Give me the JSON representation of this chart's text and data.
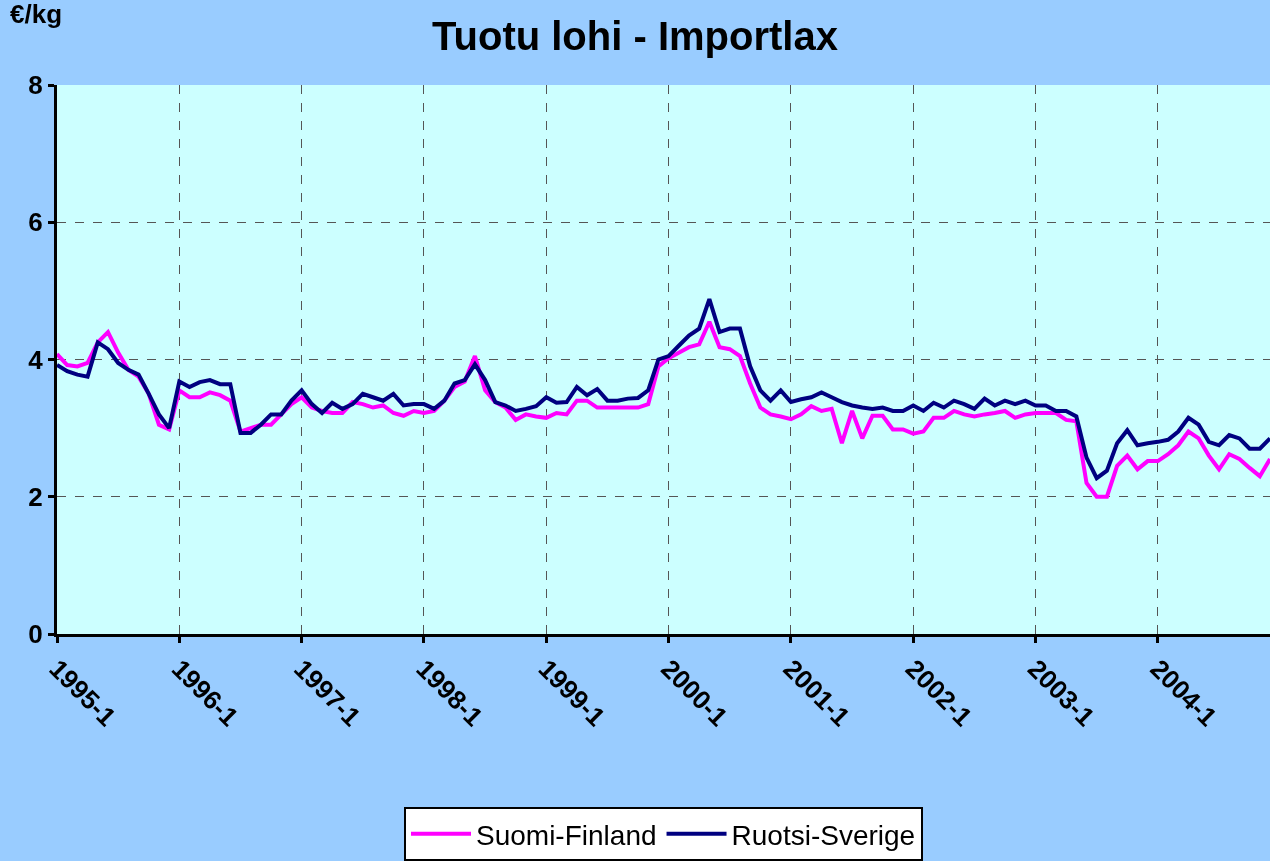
{
  "chart_data": {
    "type": "line",
    "title": "Tuotu lohi - Importlax",
    "ylabel": "€/kg",
    "categories": [
      "1995-1",
      null,
      null,
      null,
      null,
      null,
      null,
      null,
      null,
      null,
      null,
      null,
      "1996-1",
      null,
      null,
      null,
      null,
      null,
      null,
      null,
      null,
      null,
      null,
      null,
      "1997-1",
      null,
      null,
      null,
      null,
      null,
      null,
      null,
      null,
      null,
      null,
      null,
      "1998-1",
      null,
      null,
      null,
      null,
      null,
      null,
      null,
      null,
      null,
      null,
      null,
      "1999-1",
      null,
      null,
      null,
      null,
      null,
      null,
      null,
      null,
      null,
      null,
      null,
      "2000-1",
      null,
      null,
      null,
      null,
      null,
      null,
      null,
      null,
      null,
      null,
      null,
      "2001-1",
      null,
      null,
      null,
      null,
      null,
      null,
      null,
      null,
      null,
      null,
      null,
      "2002-1",
      null,
      null,
      null,
      null,
      null,
      null,
      null,
      null,
      null,
      null,
      null,
      "2003-1",
      null,
      null,
      null,
      null,
      null,
      null,
      null,
      null,
      null,
      null,
      null,
      "2004-1",
      null,
      null,
      null,
      null,
      null,
      null,
      null,
      null,
      null,
      null,
      null
    ],
    "series": [
      {
        "name": "Suomi-Finland",
        "color": "#ff00ff",
        "values": [
          4.08,
          3.92,
          3.9,
          3.95,
          4.25,
          4.4,
          4.1,
          3.85,
          3.75,
          3.5,
          3.05,
          2.98,
          3.55,
          3.45,
          3.45,
          3.52,
          3.48,
          3.4,
          2.95,
          3.0,
          3.05,
          3.05,
          3.2,
          3.35,
          3.45,
          3.3,
          3.25,
          3.22,
          3.22,
          3.38,
          3.35,
          3.3,
          3.33,
          3.22,
          3.18,
          3.25,
          3.22,
          3.25,
          3.4,
          3.6,
          3.68,
          4.05,
          3.55,
          3.38,
          3.3,
          3.12,
          3.2,
          3.17,
          3.15,
          3.22,
          3.2,
          3.4,
          3.4,
          3.3,
          3.3,
          3.3,
          3.3,
          3.3,
          3.35,
          3.9,
          4.02,
          4.1,
          4.18,
          4.22,
          4.55,
          4.18,
          4.15,
          4.05,
          3.65,
          3.3,
          3.2,
          3.17,
          3.13,
          3.2,
          3.32,
          3.25,
          3.28,
          2.78,
          3.25,
          2.85,
          3.18,
          3.18,
          2.98,
          2.98,
          2.92,
          2.95,
          3.15,
          3.15,
          3.25,
          3.2,
          3.17,
          3.2,
          3.22,
          3.25,
          3.15,
          3.2,
          3.22,
          3.22,
          3.22,
          3.12,
          3.1,
          2.2,
          2.0,
          2.0,
          2.45,
          2.6,
          2.4,
          2.52,
          2.52,
          2.62,
          2.75,
          2.95,
          2.85,
          2.6,
          2.4,
          2.62,
          2.55,
          2.42,
          2.3,
          2.55
        ]
      },
      {
        "name": "Ruotsi-Sverige",
        "color": "#000080",
        "values": [
          3.92,
          3.83,
          3.78,
          3.75,
          4.25,
          4.15,
          3.95,
          3.85,
          3.78,
          3.5,
          3.2,
          3.0,
          3.68,
          3.6,
          3.67,
          3.7,
          3.64,
          3.64,
          2.93,
          2.93,
          3.05,
          3.2,
          3.2,
          3.4,
          3.55,
          3.35,
          3.22,
          3.37,
          3.28,
          3.35,
          3.5,
          3.45,
          3.4,
          3.5,
          3.33,
          3.35,
          3.35,
          3.28,
          3.4,
          3.65,
          3.7,
          3.93,
          3.7,
          3.38,
          3.33,
          3.25,
          3.28,
          3.32,
          3.45,
          3.37,
          3.38,
          3.6,
          3.48,
          3.57,
          3.4,
          3.4,
          3.43,
          3.44,
          3.55,
          4.0,
          4.05,
          4.2,
          4.35,
          4.45,
          4.88,
          4.4,
          4.45,
          4.45,
          3.9,
          3.55,
          3.4,
          3.55,
          3.38,
          3.42,
          3.45,
          3.52,
          3.45,
          3.38,
          3.33,
          3.3,
          3.28,
          3.3,
          3.25,
          3.25,
          3.33,
          3.25,
          3.37,
          3.3,
          3.4,
          3.35,
          3.28,
          3.43,
          3.33,
          3.4,
          3.35,
          3.4,
          3.33,
          3.33,
          3.25,
          3.25,
          3.17,
          2.57,
          2.27,
          2.38,
          2.78,
          2.97,
          2.75,
          2.78,
          2.8,
          2.83,
          2.95,
          3.15,
          3.05,
          2.8,
          2.75,
          2.9,
          2.85,
          2.7,
          2.7,
          2.85
        ]
      }
    ],
    "ylim": [
      0,
      8
    ],
    "yticks": [
      0,
      2,
      4,
      6,
      8
    ],
    "grid": true,
    "legend": "bottom",
    "marker": "none",
    "line_style": "solid"
  }
}
